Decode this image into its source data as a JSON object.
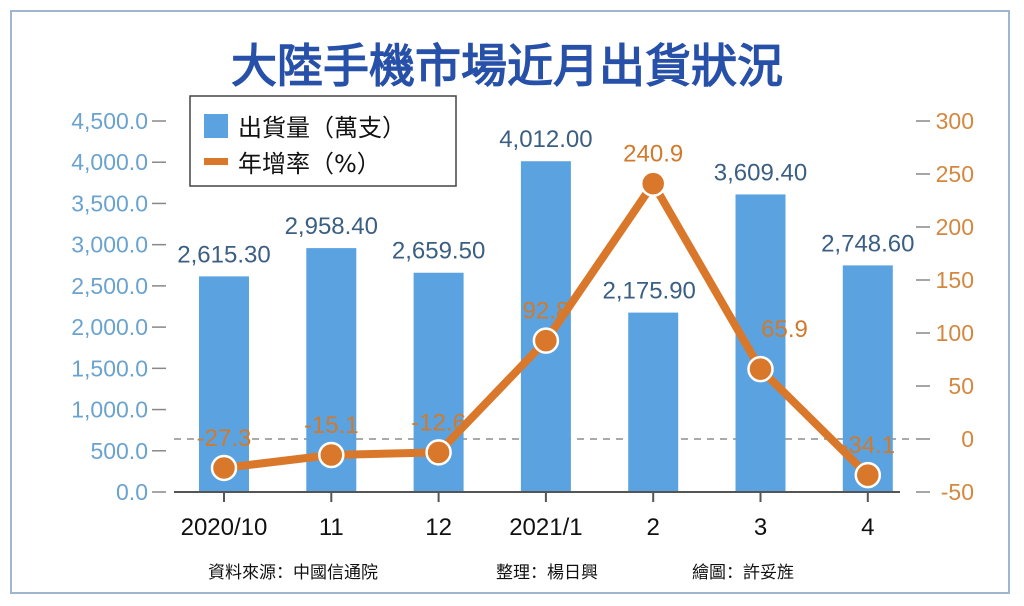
{
  "chart_data": {
    "type": "bar+line",
    "title": "大陸手機市場近月出貨狀況",
    "categories": [
      "2020/10",
      "11",
      "12",
      "2021/1",
      "2",
      "3",
      "4"
    ],
    "series": [
      {
        "name": "出貨量（萬支）",
        "type": "bar",
        "axis": "left",
        "values": [
          2615.3,
          2958.4,
          2659.5,
          4012.0,
          2175.9,
          3609.4,
          2748.6
        ],
        "labels": [
          "2,615.30",
          "2,958.40",
          "2,659.50",
          "4,012.00",
          "2,175.90",
          "3,609.40",
          "2,748.60"
        ],
        "color": "#5ba3e0"
      },
      {
        "name": "年增率（%）",
        "type": "line",
        "axis": "right",
        "values": [
          -27.3,
          -15.1,
          -12.6,
          92.8,
          240.9,
          65.9,
          -34.1
        ],
        "labels": [
          "-27.3",
          "-15.1",
          "-12.6",
          "92.8",
          "240.9",
          "65.9",
          "-34.1"
        ],
        "color": "#d9782b"
      }
    ],
    "left_axis": {
      "range": [
        0,
        4500
      ],
      "ticks": [
        0,
        500,
        1000,
        1500,
        2000,
        2500,
        3000,
        3500,
        4000,
        4500
      ],
      "tick_labels": [
        "0.0",
        "500.0",
        "1,000.0",
        "1,500.0",
        "2,000.0",
        "2,500.0",
        "3,000.0",
        "3,500.0",
        "4,000.0",
        "4,500.0"
      ]
    },
    "right_axis": {
      "range": [
        -50,
        300
      ],
      "ticks": [
        -50,
        0,
        50,
        100,
        150,
        200,
        250,
        300
      ],
      "tick_labels": [
        "-50",
        "0",
        "50",
        "100",
        "150",
        "200",
        "250",
        "300"
      ]
    },
    "zero_reference_line": "dashed",
    "legend_position": "top-left",
    "grid": false
  },
  "source_note": {
    "source": "資料來源：中國信通院",
    "editor": "整理：楊日興",
    "illustrator": "繪圖：許妥旌"
  }
}
